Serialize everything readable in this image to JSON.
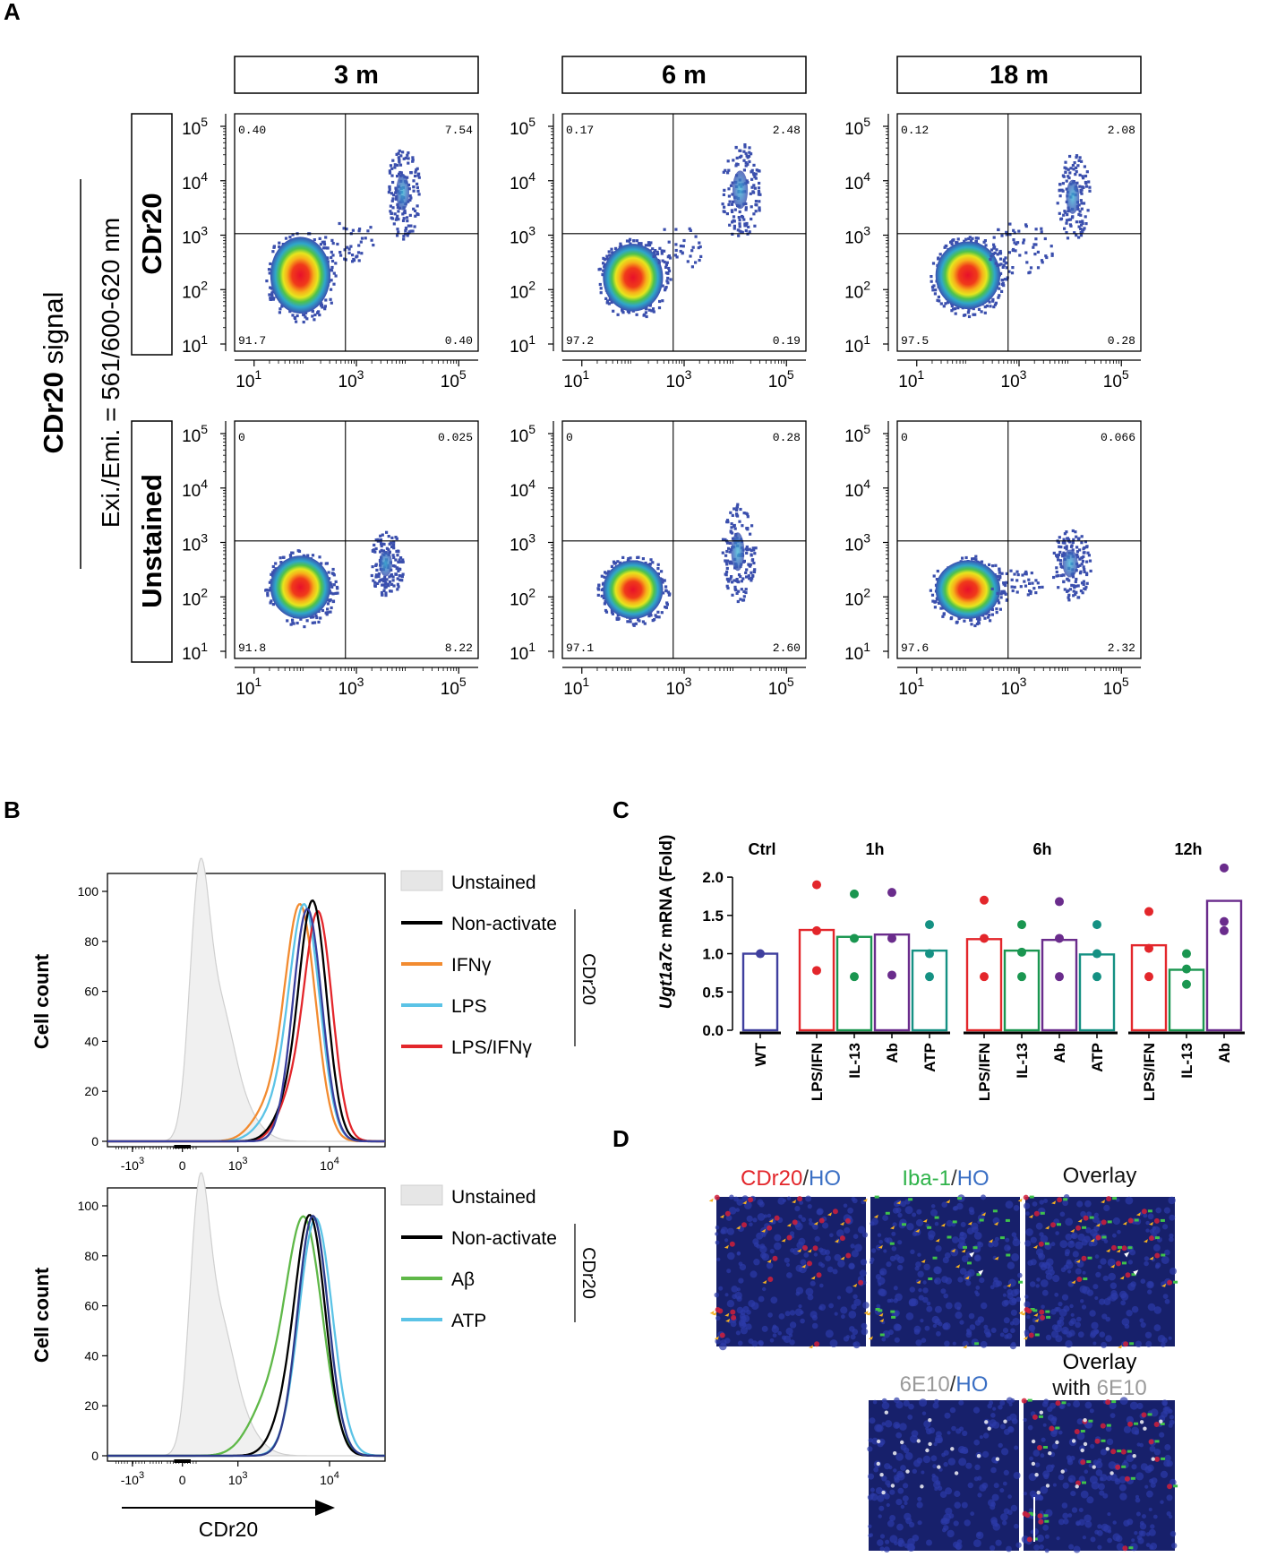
{
  "panel_letters": {
    "a": "A",
    "b": "B",
    "c": "C",
    "d": "D"
  },
  "panel_a": {
    "y_title_bold": "CDr20",
    "y_title_rest": " signal",
    "y_subtitle": "Exi./Emi. = 561/600-620 nm",
    "row_labels": [
      "CDr20",
      "Unstained"
    ],
    "col_labels": [
      "3 m",
      "6 m",
      "18 m"
    ],
    "tick_exponents": [
      "1",
      "3",
      "5"
    ],
    "y_tick_exponents": [
      "1",
      "2",
      "3",
      "4",
      "5"
    ],
    "tick_base": "10",
    "quadrant_values": [
      {
        "ul": "0.40",
        "ur": "7.54",
        "ll": "91.7",
        "lr": "0.40"
      },
      {
        "ul": "0.17",
        "ur": "2.48",
        "ll": "97.2",
        "lr": "0.19"
      },
      {
        "ul": "0.12",
        "ur": "2.08",
        "ll": "97.5",
        "lr": "0.28"
      },
      {
        "ul": "0",
        "ur": "0.025",
        "ll": "91.8",
        "lr": "8.22"
      },
      {
        "ul": "0",
        "ur": "0.28",
        "ll": "97.1",
        "lr": "2.60"
      },
      {
        "ul": "0",
        "ur": "0.066",
        "ll": "97.6",
        "lr": "2.32"
      }
    ]
  },
  "panel_b": {
    "ylabel": "Cell count",
    "xlabel": "CDr20",
    "y_ticks": [
      "0",
      "20",
      "40",
      "60",
      "80",
      "100"
    ],
    "x_ticks": [
      {
        "base": "-10",
        "exp": "3"
      },
      {
        "base": "0",
        "exp": ""
      },
      {
        "base": "10",
        "exp": "3"
      },
      {
        "base": "10",
        "exp": "4"
      }
    ],
    "bracket_label": "CDr20",
    "legend_top": [
      {
        "label": "Unstained",
        "color": "#e6e6e6"
      },
      {
        "label": "Non-activate",
        "color": "#000000"
      },
      {
        "label": "IFNγ",
        "color": "#f28b30"
      },
      {
        "label": "LPS",
        "color": "#5bc3e6"
      },
      {
        "label": "LPS/IFNγ",
        "color": "#e3262b"
      }
    ],
    "legend_bottom": [
      {
        "label": "Unstained",
        "color": "#e6e6e6"
      },
      {
        "label": "Non-activate",
        "color": "#000000"
      },
      {
        "label": "Aβ",
        "color": "#5fb848"
      },
      {
        "label": "ATP",
        "color": "#5bc3e6"
      }
    ]
  },
  "chart_data": {
    "type": "bar",
    "title": "",
    "ylabel_italic": "Ugt1a7c",
    "ylabel_rest": " mRNA (Fold)",
    "ylim": [
      0,
      2.2
    ],
    "y_ticks": [
      "0.0",
      "0.5",
      "1.0",
      "1.5",
      "2.0"
    ],
    "groups": [
      {
        "label": "Ctrl",
        "categories": [
          "WT"
        ],
        "values": [
          1.0
        ],
        "points": [
          [
            1.0
          ]
        ]
      },
      {
        "label": "1h",
        "categories": [
          "LPS/IFN",
          "IL-13",
          "Ab",
          "ATP"
        ],
        "values": [
          1.31,
          1.22,
          1.25,
          1.04
        ],
        "points": [
          [
            1.9,
            1.3,
            0.78
          ],
          [
            1.78,
            1.2,
            0.7
          ],
          [
            1.8,
            1.2,
            0.72
          ],
          [
            1.38,
            1.0,
            0.7
          ]
        ]
      },
      {
        "label": "6h",
        "categories": [
          "LPS/IFN",
          "IL-13",
          "Ab",
          "ATP"
        ],
        "values": [
          1.19,
          1.04,
          1.18,
          0.99
        ],
        "points": [
          [
            1.7,
            1.2,
            0.7
          ],
          [
            1.38,
            1.02,
            0.7
          ],
          [
            1.68,
            1.2,
            0.7
          ],
          [
            1.38,
            1.0,
            0.7
          ]
        ]
      },
      {
        "label": "12h",
        "categories": [
          "LPS/IFN",
          "IL-13",
          "Ab"
        ],
        "values": [
          1.11,
          0.79,
          1.69
        ],
        "points": [
          [
            1.55,
            1.07,
            0.7
          ],
          [
            1.0,
            0.8,
            0.6
          ],
          [
            2.12,
            1.42,
            1.3
          ]
        ]
      }
    ],
    "colors": {
      "WT": "#3f3f9e",
      "LPS/IFN": "#e3262b",
      "IL-13": "#1a9650",
      "Ab": "#6a2c8c",
      "ATP": "#159183"
    }
  },
  "panel_d": {
    "labels": [
      [
        {
          "t": "CDr20",
          "c": "#e3262b"
        },
        {
          "t": "/",
          "c": "#333333"
        },
        {
          "t": "HO",
          "c": "#3a6fc4"
        }
      ],
      [
        {
          "t": "Iba-1",
          "c": "#2fb34a"
        },
        {
          "t": "/",
          "c": "#333333"
        },
        {
          "t": "HO",
          "c": "#3a6fc4"
        }
      ],
      [
        {
          "t": "Overlay",
          "c": "#111111"
        }
      ],
      [
        {
          "t": "6E10",
          "c": "#9a9a9a"
        },
        {
          "t": "/",
          "c": "#333333"
        },
        {
          "t": "HO",
          "c": "#3a6fc4"
        }
      ]
    ],
    "overlay2_line1": "Overlay",
    "overlay2_line2_a": "with ",
    "overlay2_line2_b": "6E10"
  }
}
